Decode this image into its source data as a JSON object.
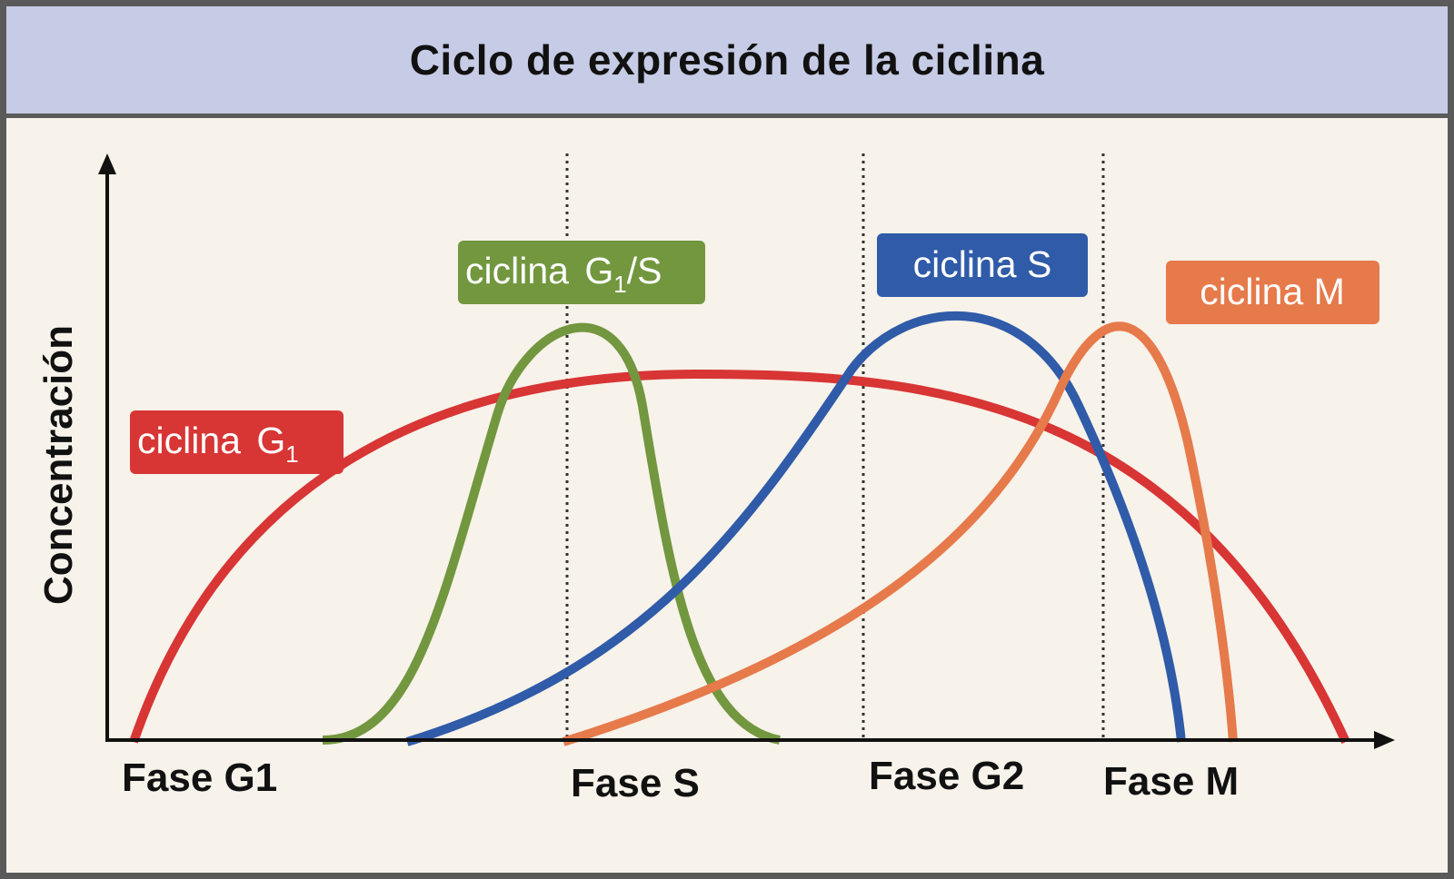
{
  "title": "Ciclo de expresión de la ciclina",
  "y_axis_label": "Concentración",
  "phases": [
    "Fase G1",
    "Fase S",
    "Fase G2",
    "Fase M"
  ],
  "colors": {
    "g1": "#d83535",
    "g1s": "#72973f",
    "s": "#2f5ba8",
    "m": "#e67a4b",
    "axis": "#111111",
    "title_bg": "#c6cce6",
    "plot_bg": "#f7f2ea"
  },
  "labels": {
    "g1": {
      "text": "ciclina",
      "sym": "G",
      "sub": "1",
      "suffix": ""
    },
    "g1s": {
      "text": "ciclina",
      "sym": "G",
      "sub": "1",
      "suffix": "/S"
    },
    "s": {
      "text": "ciclina S"
    },
    "m": {
      "text": "ciclina M"
    }
  }
}
